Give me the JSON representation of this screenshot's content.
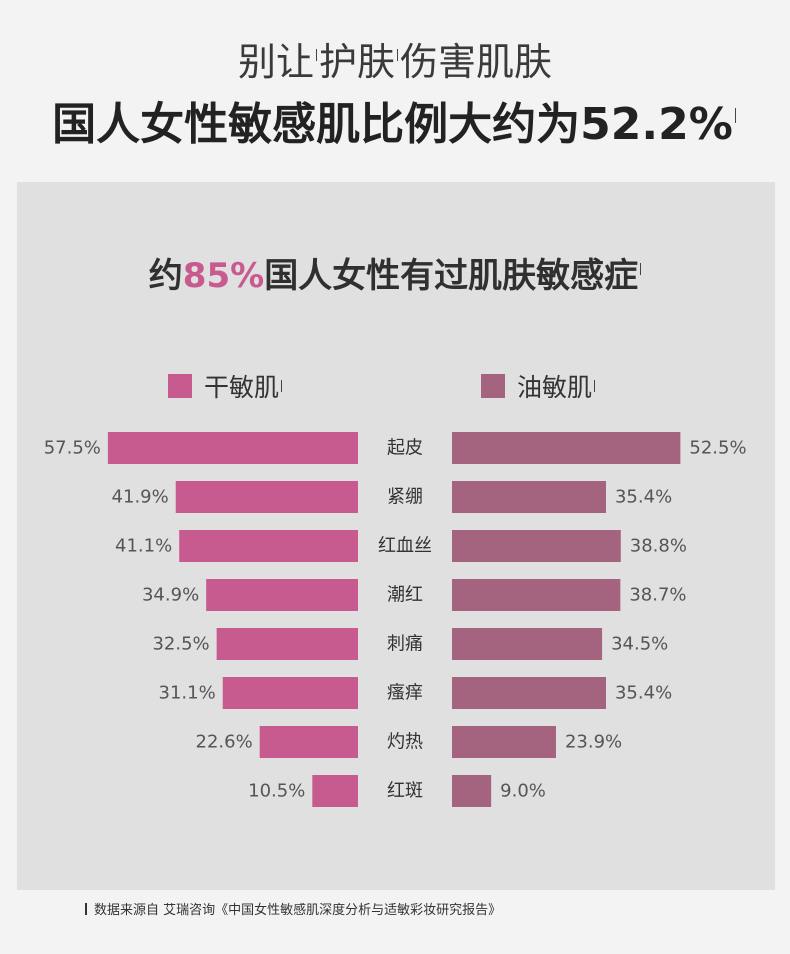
{
  "header": {
    "line1_before": "别让",
    "line1_quoted": "护肤",
    "line1_after": "伤害肌肤",
    "line2": "国人女性敏感肌比例大约为52.2%"
  },
  "panel": {
    "title_before": "约",
    "title_highlight": "85%",
    "title_after": "国人女性有过肌肤敏感症"
  },
  "colors": {
    "dry": "#c75a8e",
    "oily": "#a4637f",
    "highlight": "#c95a8f",
    "panel_bg": "#e0e0e0",
    "page_bg": "#f3f3f3"
  },
  "chart_data": {
    "type": "bar",
    "orientation": "horizontal-butterfly",
    "categories": [
      "起皮",
      "紧绷",
      "红血丝",
      "潮红",
      "刺痛",
      "瘙痒",
      "灼热",
      "红斑"
    ],
    "series": [
      {
        "name": "干敏肌",
        "values": [
          57.5,
          41.9,
          41.1,
          34.9,
          32.5,
          31.1,
          22.6,
          10.5
        ],
        "labels": [
          "57.5%",
          "41.9%",
          "41.1%",
          "34.9%",
          "32.5%",
          "31.1%",
          "22.6%",
          "10.5%"
        ]
      },
      {
        "name": "油敏肌",
        "values": [
          52.5,
          35.4,
          38.8,
          38.7,
          34.5,
          35.4,
          23.9,
          9.0
        ],
        "labels": [
          "52.5%",
          "35.4%",
          "38.8%",
          "38.7%",
          "34.5%",
          "35.4%",
          "23.9%",
          "9.0%"
        ]
      }
    ],
    "unit": "%",
    "title": "约85%国人女性有过肌肤敏感症",
    "grid": false,
    "legend": "top"
  },
  "footer": {
    "source": "数据来源自 艾瑞咨询《中国女性敏感肌深度分析与适敏彩妆研究报告》"
  }
}
